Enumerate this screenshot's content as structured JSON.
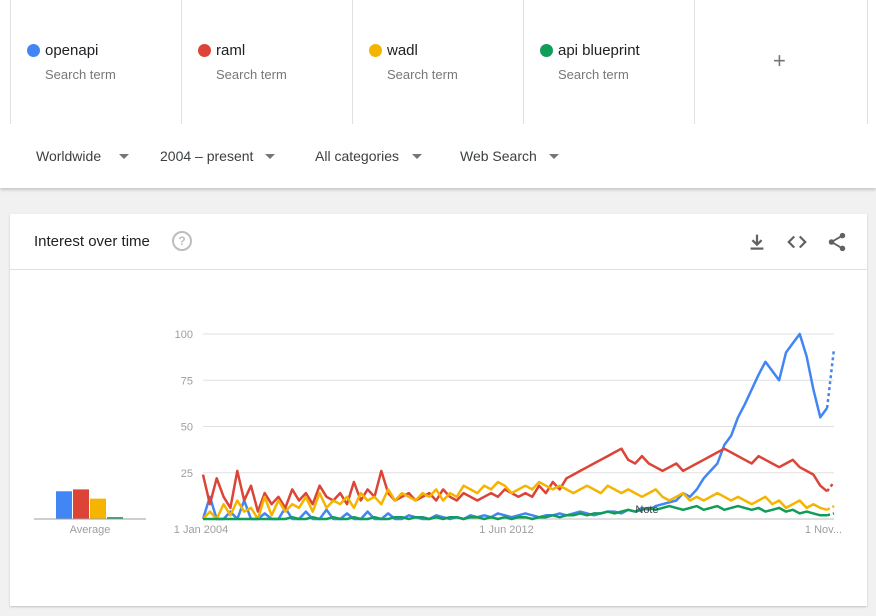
{
  "terms": [
    {
      "name": "openapi",
      "sub": "Search term",
      "color": "#4285f4"
    },
    {
      "name": "raml",
      "sub": "Search term",
      "color": "#db4437"
    },
    {
      "name": "wadl",
      "sub": "Search term",
      "color": "#f4b400"
    },
    {
      "name": "api blueprint",
      "sub": "Search term",
      "color": "#0f9d58"
    }
  ],
  "add_icon": "+",
  "filters": {
    "region": "Worldwide",
    "time": "2004 – present",
    "category": "All categories",
    "search_type": "Web Search"
  },
  "card": {
    "title": "Interest over time",
    "help_icon": "?",
    "icons": [
      "download-icon",
      "embed-code-icon",
      "share-icon"
    ]
  },
  "chart_data": {
    "type": "line",
    "y_ticks": [
      "100",
      "75",
      "50",
      "25"
    ],
    "ylim": [
      0,
      100
    ],
    "x_ticks": [
      "1 Jan 2004",
      "1 Jun 2012",
      "1 Nov..."
    ],
    "average_label": "Average",
    "note_label": "Note",
    "averages": [
      {
        "name": "openapi",
        "value": 15
      },
      {
        "name": "raml",
        "value": 16
      },
      {
        "name": "wadl",
        "value": 11
      },
      {
        "name": "api blueprint",
        "value": 1
      }
    ],
    "colors": [
      "#4285f4",
      "#db4437",
      "#f4b400",
      "#0f9d58"
    ],
    "series": [
      {
        "name": "openapi",
        "values": [
          0,
          12,
          0,
          0,
          4,
          0,
          10,
          0,
          0,
          3,
          0,
          0,
          6,
          0,
          0,
          4,
          0,
          0,
          5,
          0,
          0,
          3,
          0,
          0,
          4,
          0,
          0,
          3,
          0,
          0,
          2,
          1,
          0,
          0,
          2,
          1,
          0,
          1,
          0,
          2,
          1,
          2,
          1,
          3,
          2,
          1,
          2,
          3,
          2,
          1,
          2,
          2,
          3,
          2,
          3,
          4,
          3,
          2,
          3,
          4,
          4,
          3,
          5,
          4,
          6,
          5,
          7,
          8,
          9,
          10,
          14,
          12,
          16,
          22,
          26,
          30,
          40,
          45,
          55,
          62,
          70,
          78,
          85,
          80,
          75,
          90,
          95,
          100,
          88,
          70,
          55,
          60,
          92
        ]
      },
      {
        "name": "raml",
        "values": [
          24,
          8,
          22,
          12,
          6,
          26,
          10,
          18,
          4,
          14,
          8,
          12,
          6,
          16,
          10,
          14,
          8,
          18,
          12,
          10,
          14,
          8,
          20,
          10,
          16,
          12,
          26,
          14,
          10,
          12,
          14,
          10,
          12,
          14,
          10,
          16,
          12,
          10,
          14,
          12,
          10,
          12,
          14,
          12,
          16,
          14,
          12,
          14,
          12,
          18,
          14,
          20,
          16,
          22,
          24,
          26,
          28,
          30,
          32,
          34,
          36,
          38,
          32,
          30,
          34,
          30,
          28,
          26,
          28,
          30,
          26,
          28,
          30,
          32,
          34,
          36,
          38,
          36,
          34,
          32,
          30,
          34,
          32,
          30,
          28,
          30,
          32,
          28,
          26,
          24,
          18,
          15,
          20
        ]
      },
      {
        "name": "wadl",
        "values": [
          0,
          4,
          0,
          8,
          2,
          10,
          4,
          6,
          0,
          12,
          2,
          10,
          4,
          8,
          6,
          12,
          4,
          14,
          6,
          10,
          8,
          12,
          6,
          14,
          10,
          12,
          8,
          16,
          10,
          14,
          12,
          10,
          14,
          12,
          16,
          10,
          14,
          12,
          18,
          16,
          14,
          18,
          16,
          20,
          18,
          14,
          16,
          18,
          16,
          20,
          18,
          16,
          18,
          16,
          14,
          16,
          18,
          16,
          14,
          18,
          16,
          14,
          16,
          14,
          12,
          14,
          16,
          12,
          10,
          12,
          14,
          10,
          12,
          10,
          12,
          14,
          12,
          10,
          12,
          10,
          8,
          10,
          12,
          8,
          10,
          6,
          8,
          10,
          6,
          8,
          6,
          5,
          7
        ]
      },
      {
        "name": "api blueprint",
        "values": [
          0,
          0,
          0,
          0,
          0,
          0,
          0,
          0,
          0,
          0,
          0,
          0,
          0,
          1,
          0,
          0,
          1,
          0,
          0,
          1,
          0,
          0,
          1,
          0,
          0,
          1,
          0,
          0,
          1,
          1,
          0,
          1,
          1,
          0,
          1,
          0,
          1,
          1,
          0,
          1,
          1,
          0,
          1,
          0,
          1,
          0,
          1,
          1,
          0,
          1,
          1,
          2,
          1,
          2,
          2,
          3,
          2,
          3,
          3,
          4,
          3,
          4,
          5,
          4,
          5,
          6,
          5,
          6,
          7,
          6,
          5,
          6,
          7,
          5,
          6,
          7,
          5,
          6,
          7,
          6,
          5,
          6,
          4,
          5,
          6,
          4,
          5,
          3,
          4,
          3,
          2,
          2,
          3
        ]
      }
    ]
  }
}
